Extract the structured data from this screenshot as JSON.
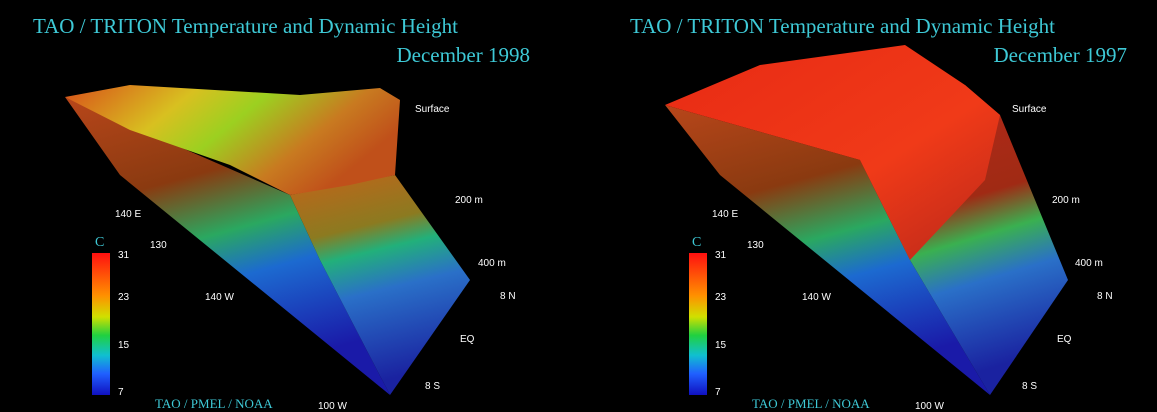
{
  "panels": [
    {
      "title": "TAO / TRITON Temperature and Dynamic Height",
      "date": "December 1998",
      "depth_labels": [
        "Surface",
        "200 m",
        "400 m"
      ],
      "lat_labels": [
        "8 N",
        "EQ",
        "8 S"
      ],
      "lon_labels": [
        "140 E",
        "130",
        "140 W",
        "100 W"
      ],
      "colorbar": {
        "unit": "C",
        "ticks": [
          "31",
          "23",
          "15",
          "7"
        ]
      },
      "credit": "TAO / PMEL / NOAA"
    },
    {
      "title": "TAO / TRITON Temperature and Dynamic Height",
      "date": "December 1997",
      "depth_labels": [
        "Surface",
        "200 m",
        "400 m"
      ],
      "lat_labels": [
        "8 N",
        "EQ",
        "8 S"
      ],
      "lon_labels": [
        "140 E",
        "130",
        "140 W",
        "100 W"
      ],
      "colorbar": {
        "unit": "C",
        "ticks": [
          "31",
          "23",
          "15",
          "7"
        ]
      },
      "credit": "TAO / PMEL / NOAA"
    }
  ]
}
